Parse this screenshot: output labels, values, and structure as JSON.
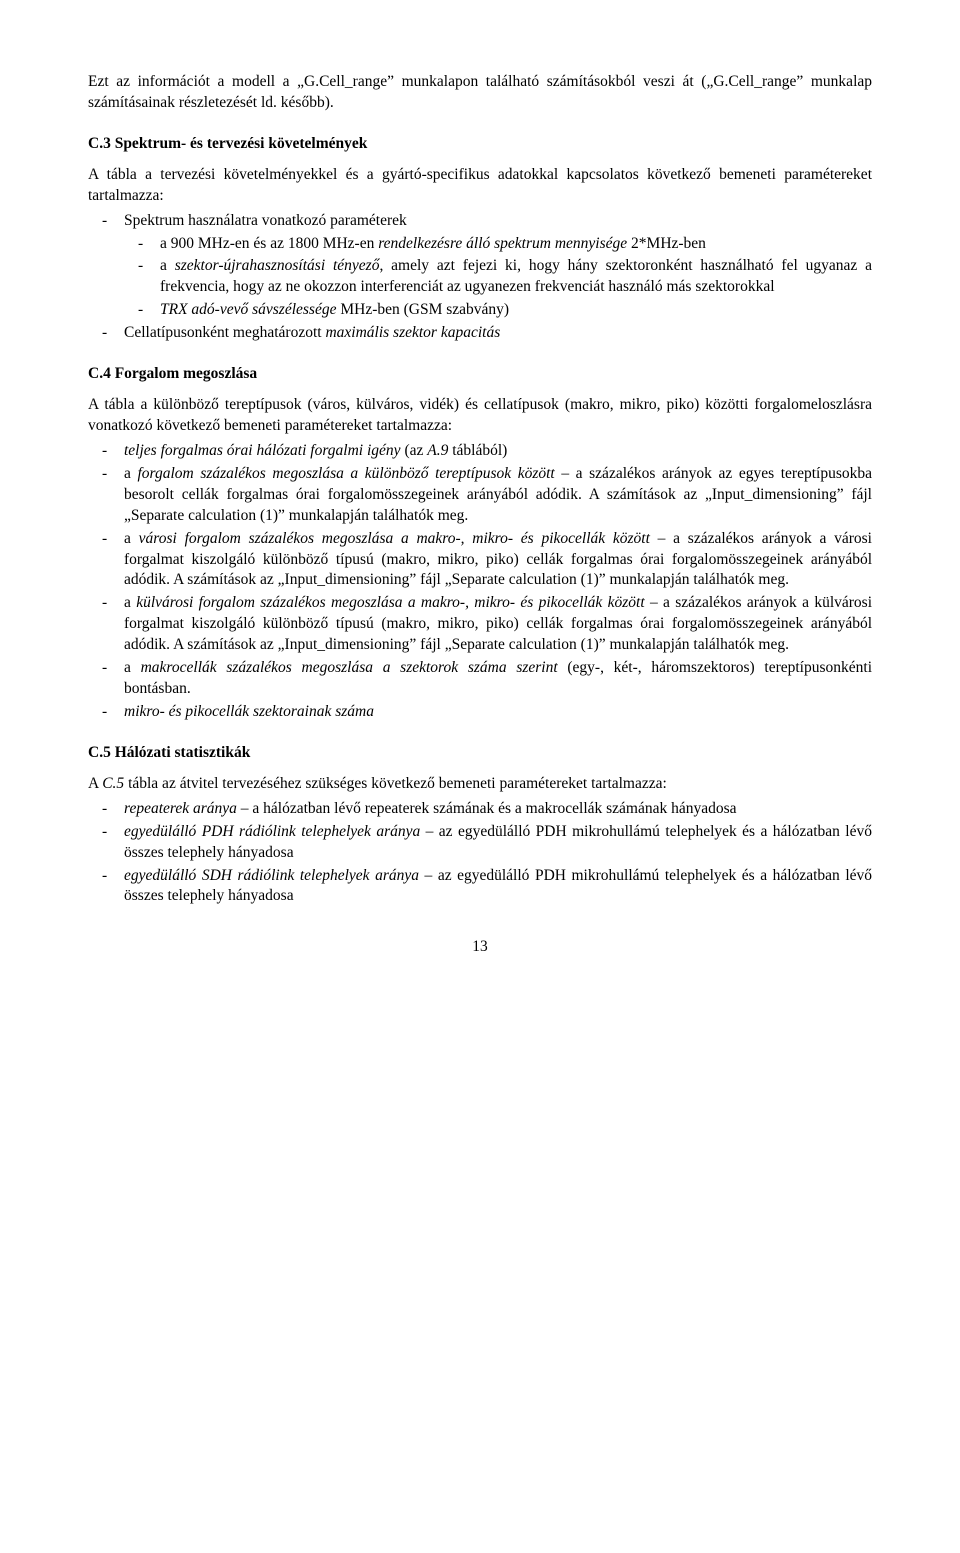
{
  "p_intro_top": "Ezt az információt a modell a „G.Cell_range” munkalapon található számításokból veszi át („G.Cell_range” munkalap számításainak részletezését ld. később).",
  "h_c3": "C.3 Spektrum- és tervezési követelmények",
  "c3_intro": "A tábla a tervezési követelményekkel és a gyártó-specifikus adatokkal kapcsolatos következő bemeneti paramétereket tartalmazza:",
  "c3_l1": "Spektrum használatra vonatkozó paraméterek",
  "c3_l1a_pre": "a 900 MHz-en és az 1800 MHz-en ",
  "c3_l1a_it": "rendelkezésre álló spektrum mennyisége",
  "c3_l1a_post": " 2*MHz-ben",
  "c3_l1b_pre": "a ",
  "c3_l1b_it": "szektor-újrahasznosítási tényező",
  "c3_l1b_post": ", amely azt fejezi ki, hogy hány szektoronként használható fel ugyanaz a frekvencia, hogy az ne okozzon interferenciát az ugyanezen frekvenciát használó más szektorokkal",
  "c3_l1c_it": "TRX adó-vevő sávszélessége",
  "c3_l1c_post": " MHz-ben (GSM szabvány)",
  "c3_l2_pre": "Cellatípusonként meghatározott ",
  "c3_l2_it": "maximális szektor kapacitás",
  "h_c4": "C.4 Forgalom megoszlása",
  "c4_intro": "A tábla a különböző tereptípusok (város, külváros, vidék) és cellatípusok (makro, mikro, piko) közötti forgalomeloszlásra vonatkozó következő bemeneti paramétereket tartalmazza:",
  "c4_l1_it": "teljes forgalmas órai hálózati forgalmi igény",
  "c4_l1_post": " (az ",
  "c4_l1_it2": "A.9",
  "c4_l1_post2": " táblából)",
  "c4_l2_pre": "a ",
  "c4_l2_it": "forgalom százalékos megoszlása a különböző tereptípusok között",
  "c4_l2_post": " – a százalékos arányok az egyes tereptípusokba besorolt cellák forgalmas órai forgalomösszegeinek arányából adódik. A számítások az „Input_dimensioning” fájl „Separate calculation (1)” munkalapján találhatók meg.",
  "c4_l3_pre": "a ",
  "c4_l3_it": "városi forgalom százalékos megoszlása a makro-, mikro- és pikocellák között",
  "c4_l3_post": " – a százalékos arányok a városi forgalmat kiszolgáló különböző típusú (makro, mikro, piko) cellák forgalmas órai forgalomösszegeinek arányából adódik. A számítások az „Input_dimensioning” fájl „Separate calculation (1)” munkalapján találhatók meg.",
  "c4_l4_pre": "a ",
  "c4_l4_it": "külvárosi forgalom százalékos megoszlása a makro-, mikro- és pikocellák között",
  "c4_l4_post": " – a százalékos arányok a külvárosi forgalmat kiszolgáló különböző típusú (makro, mikro, piko) cellák forgalmas órai forgalomösszegeinek arányából adódik. A számítások az „Input_dimensioning” fájl „Separate calculation (1)” munkalapján találhatók meg.",
  "c4_l5_pre": "a ",
  "c4_l5_it": "makrocellák százalékos megoszlása a szektorok száma szerint",
  "c4_l5_post": " (egy-, két-, háromszektoros) tereptípusonkénti bontásban.",
  "c4_l6_it": "mikro- és pikocellák szektorainak száma",
  "h_c5": "C.5 Hálózati statisztikák",
  "c5_intro_pre": "A ",
  "c5_intro_it": "C.5",
  "c5_intro_post": " tábla az átvitel tervezéséhez szükséges következő bemeneti paramétereket tartalmazza:",
  "c5_l1_it": "repeaterek aránya",
  "c5_l1_post": " – a hálózatban lévő repeaterek számának és a makrocellák számának hányadosa",
  "c5_l2_it": "egyedülálló PDH rádiólink telephelyek aránya",
  "c5_l2_post": " – az egyedülálló PDH mikrohullámú telephelyek és a hálózatban lévő összes telephely hányadosa",
  "c5_l3_it": "egyedülálló SDH rádiólink telephelyek aránya",
  "c5_l3_post": " – az egyedülálló PDH mikrohullámú telephelyek és a hálózatban lévő összes telephely hányadosa",
  "pagenum": "13"
}
